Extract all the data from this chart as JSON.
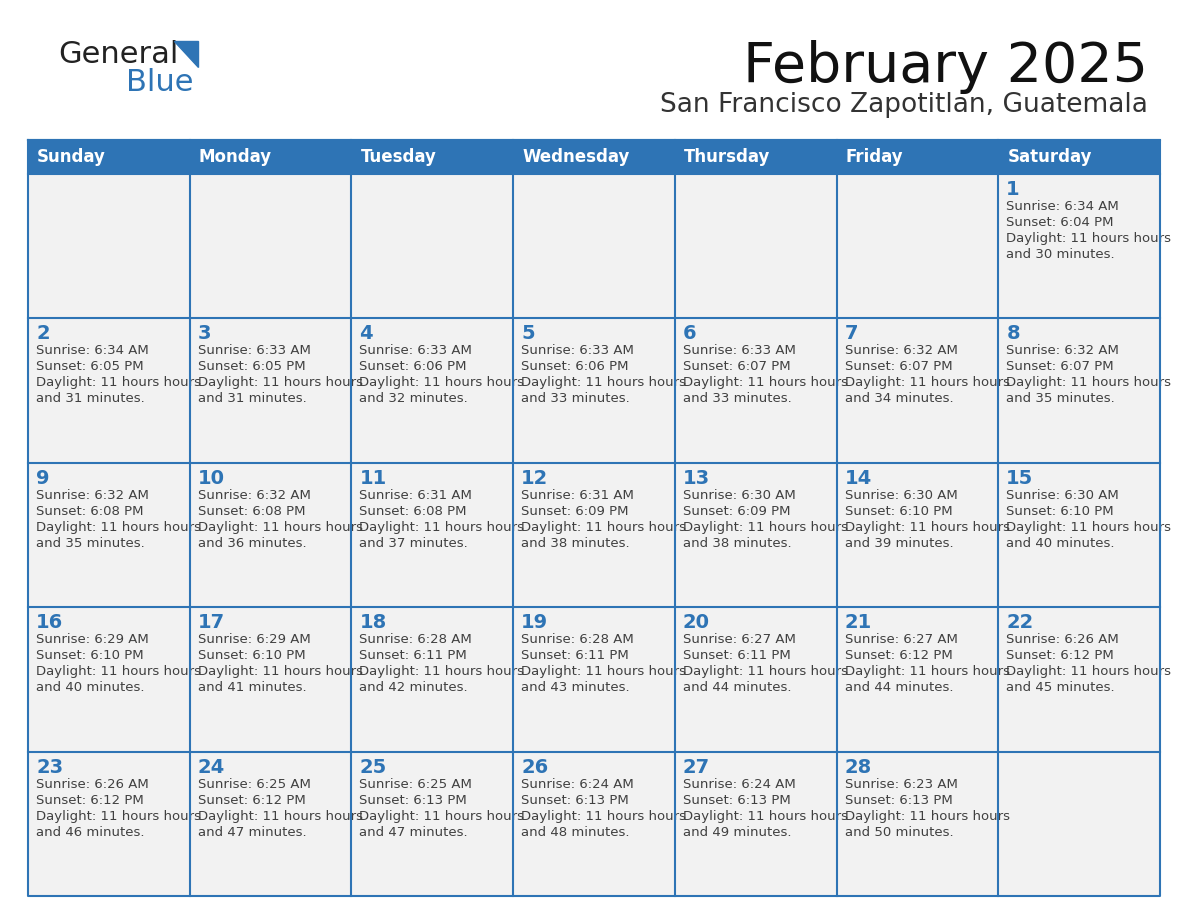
{
  "title": "February 2025",
  "subtitle": "San Francisco Zapotitlan, Guatemala",
  "header_color": "#2E74B5",
  "header_text_color": "#FFFFFF",
  "cell_bg_color": "#F2F2F2",
  "cell_text_bg": "#FFFFFF",
  "border_color": "#2E74B5",
  "day_number_color": "#2E74B5",
  "cell_text_color": "#404040",
  "days_of_week": [
    "Sunday",
    "Monday",
    "Tuesday",
    "Wednesday",
    "Thursday",
    "Friday",
    "Saturday"
  ],
  "logo_general_color": "#222222",
  "logo_blue_color": "#2E74B5",
  "calendar_data": {
    "1": {
      "sunrise": "6:34 AM",
      "sunset": "6:04 PM",
      "daylight": "11 hours and 30 minutes"
    },
    "2": {
      "sunrise": "6:34 AM",
      "sunset": "6:05 PM",
      "daylight": "11 hours and 31 minutes"
    },
    "3": {
      "sunrise": "6:33 AM",
      "sunset": "6:05 PM",
      "daylight": "11 hours and 31 minutes"
    },
    "4": {
      "sunrise": "6:33 AM",
      "sunset": "6:06 PM",
      "daylight": "11 hours and 32 minutes"
    },
    "5": {
      "sunrise": "6:33 AM",
      "sunset": "6:06 PM",
      "daylight": "11 hours and 33 minutes"
    },
    "6": {
      "sunrise": "6:33 AM",
      "sunset": "6:07 PM",
      "daylight": "11 hours and 33 minutes"
    },
    "7": {
      "sunrise": "6:32 AM",
      "sunset": "6:07 PM",
      "daylight": "11 hours and 34 minutes"
    },
    "8": {
      "sunrise": "6:32 AM",
      "sunset": "6:07 PM",
      "daylight": "11 hours and 35 minutes"
    },
    "9": {
      "sunrise": "6:32 AM",
      "sunset": "6:08 PM",
      "daylight": "11 hours and 35 minutes"
    },
    "10": {
      "sunrise": "6:32 AM",
      "sunset": "6:08 PM",
      "daylight": "11 hours and 36 minutes"
    },
    "11": {
      "sunrise": "6:31 AM",
      "sunset": "6:08 PM",
      "daylight": "11 hours and 37 minutes"
    },
    "12": {
      "sunrise": "6:31 AM",
      "sunset": "6:09 PM",
      "daylight": "11 hours and 38 minutes"
    },
    "13": {
      "sunrise": "6:30 AM",
      "sunset": "6:09 PM",
      "daylight": "11 hours and 38 minutes"
    },
    "14": {
      "sunrise": "6:30 AM",
      "sunset": "6:10 PM",
      "daylight": "11 hours and 39 minutes"
    },
    "15": {
      "sunrise": "6:30 AM",
      "sunset": "6:10 PM",
      "daylight": "11 hours and 40 minutes"
    },
    "16": {
      "sunrise": "6:29 AM",
      "sunset": "6:10 PM",
      "daylight": "11 hours and 40 minutes"
    },
    "17": {
      "sunrise": "6:29 AM",
      "sunset": "6:10 PM",
      "daylight": "11 hours and 41 minutes"
    },
    "18": {
      "sunrise": "6:28 AM",
      "sunset": "6:11 PM",
      "daylight": "11 hours and 42 minutes"
    },
    "19": {
      "sunrise": "6:28 AM",
      "sunset": "6:11 PM",
      "daylight": "11 hours and 43 minutes"
    },
    "20": {
      "sunrise": "6:27 AM",
      "sunset": "6:11 PM",
      "daylight": "11 hours and 44 minutes"
    },
    "21": {
      "sunrise": "6:27 AM",
      "sunset": "6:12 PM",
      "daylight": "11 hours and 44 minutes"
    },
    "22": {
      "sunrise": "6:26 AM",
      "sunset": "6:12 PM",
      "daylight": "11 hours and 45 minutes"
    },
    "23": {
      "sunrise": "6:26 AM",
      "sunset": "6:12 PM",
      "daylight": "11 hours and 46 minutes"
    },
    "24": {
      "sunrise": "6:25 AM",
      "sunset": "6:12 PM",
      "daylight": "11 hours and 47 minutes"
    },
    "25": {
      "sunrise": "6:25 AM",
      "sunset": "6:13 PM",
      "daylight": "11 hours and 47 minutes"
    },
    "26": {
      "sunrise": "6:24 AM",
      "sunset": "6:13 PM",
      "daylight": "11 hours and 48 minutes"
    },
    "27": {
      "sunrise": "6:24 AM",
      "sunset": "6:13 PM",
      "daylight": "11 hours and 49 minutes"
    },
    "28": {
      "sunrise": "6:23 AM",
      "sunset": "6:13 PM",
      "daylight": "11 hours and 50 minutes"
    }
  },
  "weeks": [
    [
      null,
      null,
      null,
      null,
      null,
      null,
      1
    ],
    [
      2,
      3,
      4,
      5,
      6,
      7,
      8
    ],
    [
      9,
      10,
      11,
      12,
      13,
      14,
      15
    ],
    [
      16,
      17,
      18,
      19,
      20,
      21,
      22
    ],
    [
      23,
      24,
      25,
      26,
      27,
      28,
      null
    ]
  ],
  "title_fontsize": 40,
  "subtitle_fontsize": 19,
  "header_fontsize": 12,
  "day_num_fontsize": 14,
  "cell_fontsize": 9.5
}
